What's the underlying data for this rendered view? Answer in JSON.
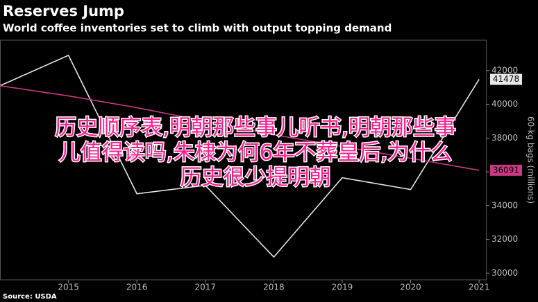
{
  "chart_data": {
    "type": "line",
    "title": "Reserves Jump",
    "subtitle": "World coffee inventories set to climb with output topping demand",
    "source": "Source: USDA",
    "ylabel": "60-kg bags (millions)",
    "x": [
      2014,
      2015,
      2016,
      2017,
      2018,
      2019,
      2020,
      2021
    ],
    "xlim": [
      2014,
      2021.1
    ],
    "xticks": [
      2015,
      2016,
      2017,
      2018,
      2019,
      2020,
      2021
    ],
    "ylim": [
      29600,
      43800
    ],
    "yticks": [
      30000,
      32000,
      34000,
      36000,
      38000,
      40000,
      42000
    ],
    "series": [
      {
        "color": "#e8e8e8",
        "values": [
          41100,
          42900,
          34700,
          35200,
          30950,
          35650,
          34950,
          41478
        ]
      },
      {
        "color": "#c83a82",
        "values": [
          41100,
          40500,
          39800,
          39000,
          38200,
          37500,
          36800,
          36091
        ]
      }
    ],
    "overlay_text": [
      "历史顺序表,明朝那些事儿听书,明朝那些事",
      "儿值得读吗,朱棣为何6年不葬皇后,为什么",
      "历史很少提明朝"
    ]
  }
}
